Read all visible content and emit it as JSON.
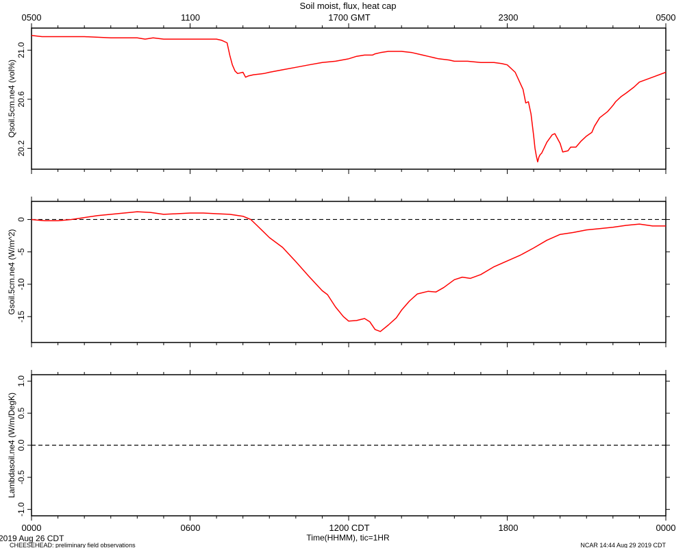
{
  "title": "Soil moist, flux, heat cap",
  "top_axis_labels": [
    "0500",
    "1100",
    "1700 GMT",
    "2300",
    "0500"
  ],
  "bottom_axis_labels": [
    "0000",
    "0600",
    "1200 CDT",
    "1800",
    "0000"
  ],
  "xlabel": "Time(HHMM), tic=1HR",
  "footer": {
    "date": "2019 Aug 26 CDT",
    "project": "CHEESEHEAD: preliminary field observations",
    "credit": "NCAR 14:44 Aug 29 2019 CDT"
  },
  "colors": {
    "series": "#ff0000",
    "axes": "#000000",
    "zero_line": "#000000"
  },
  "chart_data": [
    {
      "type": "line",
      "ylabel": "Qsoil.5cm.ne4 (vol%)",
      "ylim": [
        20.03,
        21.18
      ],
      "y_ticks": [
        20.2,
        20.6,
        21.0
      ],
      "y_tick_labels": [
        "20.2",
        "20.6",
        "21.0"
      ],
      "xlim": [
        0,
        24
      ],
      "series": [
        {
          "x": [
            0,
            0.4,
            1,
            2,
            3,
            4,
            4.3,
            4.6,
            5,
            6,
            7,
            7.2,
            7.4,
            7.5,
            7.6,
            7.7,
            7.8,
            8,
            8.1,
            8.2,
            8.4,
            8.8,
            9,
            9.5,
            10,
            10.5,
            11,
            11.5,
            12,
            12.3,
            12.6,
            12.9,
            13,
            13.2,
            13.5,
            14,
            14.4,
            14.8,
            15,
            15.4,
            15.8,
            16,
            16.5,
            17,
            17.5,
            17.8,
            18,
            18.3,
            18.6,
            18.7,
            18.8,
            18.9,
            19,
            19.05,
            19.1,
            19.15,
            19.2,
            19.25,
            19.3,
            19.5,
            19.7,
            19.8,
            20,
            20.1,
            20.3,
            20.4,
            20.6,
            20.8,
            21,
            21.2,
            21.3,
            21.5,
            21.8,
            22,
            22.1,
            22.3,
            22.5,
            22.8,
            23,
            23.5,
            24
          ],
          "y": [
            21.12,
            21.11,
            21.11,
            21.11,
            21.1,
            21.1,
            21.09,
            21.1,
            21.09,
            21.09,
            21.09,
            21.08,
            21.06,
            20.96,
            20.88,
            20.83,
            20.81,
            20.82,
            20.78,
            20.79,
            20.8,
            20.81,
            20.82,
            20.84,
            20.86,
            20.88,
            20.9,
            20.91,
            20.93,
            20.95,
            20.96,
            20.96,
            20.97,
            20.98,
            20.99,
            20.99,
            20.98,
            20.96,
            20.95,
            20.93,
            20.92,
            20.91,
            20.91,
            20.9,
            20.9,
            20.89,
            20.88,
            20.82,
            20.68,
            20.57,
            20.58,
            20.48,
            20.3,
            20.2,
            20.14,
            20.09,
            20.13,
            20.15,
            20.16,
            20.25,
            20.31,
            20.32,
            20.24,
            20.17,
            20.18,
            20.21,
            20.21,
            20.26,
            20.3,
            20.33,
            20.38,
            20.45,
            20.5,
            20.55,
            20.58,
            20.62,
            20.65,
            20.7,
            20.74,
            20.78,
            20.82
          ]
        }
      ]
    },
    {
      "type": "line",
      "ylabel": "Gsoil.5cm.ne4 (W/m^2)",
      "ylim": [
        -19,
        2.8
      ],
      "y_ticks": [
        -15,
        -10,
        -5,
        0
      ],
      "y_tick_labels": [
        "-15",
        "-10",
        "-5",
        "0"
      ],
      "xlim": [
        0,
        24
      ],
      "reference_line": 0,
      "series": [
        {
          "x": [
            0,
            0.5,
            1,
            1.5,
            2,
            2.5,
            3,
            3.5,
            4,
            4.5,
            5,
            5.5,
            6,
            6.5,
            7,
            7.5,
            8,
            8.3,
            8.5,
            9,
            9.5,
            10,
            10.5,
            11,
            11.2,
            11.5,
            11.8,
            12,
            12.3,
            12.6,
            12.8,
            13,
            13.2,
            13.5,
            13.8,
            14,
            14.3,
            14.6,
            15,
            15.3,
            15.6,
            16,
            16.3,
            16.6,
            17,
            17.5,
            18,
            18.5,
            19,
            19.5,
            20,
            20.5,
            21,
            21.5,
            22,
            22.5,
            23,
            23.5,
            24
          ],
          "y": [
            0.0,
            -0.2,
            -0.2,
            0.0,
            0.3,
            0.6,
            0.8,
            1.0,
            1.2,
            1.1,
            0.8,
            0.9,
            1.0,
            1.0,
            0.9,
            0.8,
            0.5,
            0.0,
            -0.8,
            -2.8,
            -4.3,
            -6.5,
            -8.8,
            -11.0,
            -11.6,
            -13.5,
            -15.0,
            -15.7,
            -15.6,
            -15.3,
            -15.8,
            -17.0,
            -17.3,
            -16.3,
            -15.2,
            -14.0,
            -12.6,
            -11.5,
            -11.1,
            -11.2,
            -10.5,
            -9.3,
            -8.9,
            -9.1,
            -8.5,
            -7.3,
            -6.4,
            -5.5,
            -4.4,
            -3.2,
            -2.3,
            -2.0,
            -1.6,
            -1.4,
            -1.2,
            -0.9,
            -0.7,
            -1.0,
            -1.0
          ]
        }
      ]
    },
    {
      "type": "line",
      "ylabel": "Lambdasoil.ne4 (W/m/DegK)",
      "ylim": [
        -1.1,
        1.1
      ],
      "y_ticks": [
        -1.0,
        -0.5,
        0.0,
        0.5,
        1.0
      ],
      "y_tick_labels": [
        "-1.0",
        "-0.5",
        "0.0",
        "0.5",
        "1.0"
      ],
      "xlim": [
        0,
        24
      ],
      "reference_line": 0,
      "series": []
    }
  ]
}
